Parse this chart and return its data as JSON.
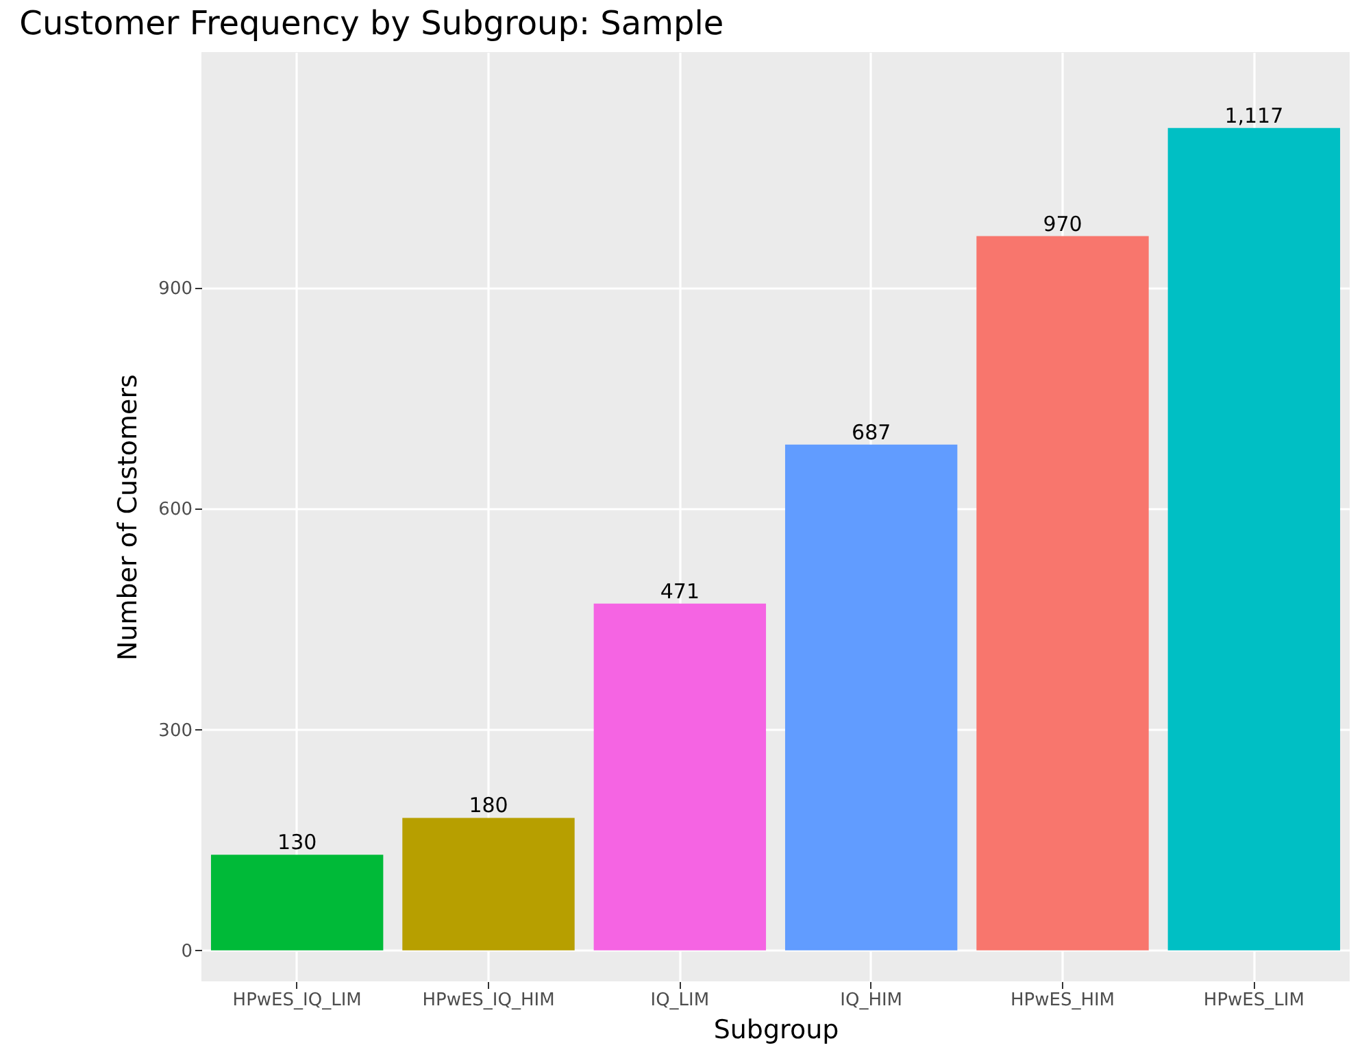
{
  "chart_data": {
    "type": "bar",
    "title": "Customer Frequency by Subgroup: Sample",
    "xlabel": "Subgroup",
    "ylabel": "Number of Customers",
    "categories": [
      "HPwES_IQ_LIM",
      "HPwES_IQ_HIM",
      "IQ_LIM",
      "IQ_HIM",
      "HPwES_HIM",
      "HPwES_LIM"
    ],
    "values": [
      130,
      180,
      471,
      687,
      970,
      1117
    ],
    "colors": [
      "#00ba38",
      "#b79f00",
      "#f564e3",
      "#619cff",
      "#f8766d",
      "#00bfc4"
    ],
    "value_labels": [
      "130",
      "180",
      "471",
      "687",
      "970",
      "1,117"
    ],
    "ylim": [
      -42,
      1220
    ],
    "yticks": [
      0,
      300,
      600,
      900
    ],
    "grid": true
  }
}
